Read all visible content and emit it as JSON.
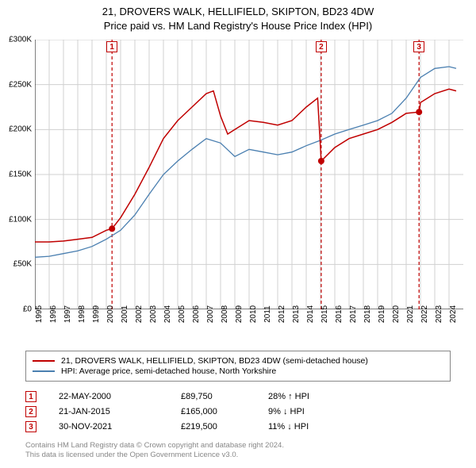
{
  "title": {
    "line1": "21, DROVERS WALK, HELLIFIELD, SKIPTON, BD23 4DW",
    "line2": "Price paid vs. HM Land Registry's House Price Index (HPI)"
  },
  "chart": {
    "type": "line",
    "background_color": "#ffffff",
    "grid_color": "#d0d0d0",
    "axis_color": "#000000",
    "font_size": 10,
    "x_start_year": 1995,
    "x_end_year": 2024,
    "x_ticks": [
      1995,
      1996,
      1997,
      1998,
      1999,
      2000,
      2001,
      2002,
      2003,
      2004,
      2005,
      2006,
      2007,
      2008,
      2009,
      2010,
      2011,
      2012,
      2013,
      2014,
      2015,
      2016,
      2017,
      2018,
      2019,
      2020,
      2021,
      2022,
      2023,
      2024
    ],
    "y_min": 0,
    "y_max": 300000,
    "y_tick_step": 50000,
    "y_ticks": [
      "£0",
      "£50K",
      "£100K",
      "£150K",
      "£200K",
      "£250K",
      "£300K"
    ],
    "series": [
      {
        "id": "property",
        "label": "21, DROVERS WALK, HELLIFIELD, SKIPTON, BD23 4DW (semi-detached house)",
        "color": "#c00000",
        "line_width": 1.5,
        "data": [
          [
            1995,
            75000
          ],
          [
            1996,
            75000
          ],
          [
            1997,
            76000
          ],
          [
            1998,
            78000
          ],
          [
            1999,
            80000
          ],
          [
            2000,
            88000
          ],
          [
            2000.4,
            89750
          ],
          [
            2001,
            102000
          ],
          [
            2002,
            128000
          ],
          [
            2003,
            158000
          ],
          [
            2004,
            190000
          ],
          [
            2005,
            210000
          ],
          [
            2006,
            225000
          ],
          [
            2007,
            240000
          ],
          [
            2007.5,
            243000
          ],
          [
            2008,
            215000
          ],
          [
            2008.5,
            195000
          ],
          [
            2009,
            200000
          ],
          [
            2010,
            210000
          ],
          [
            2011,
            208000
          ],
          [
            2012,
            205000
          ],
          [
            2013,
            210000
          ],
          [
            2014,
            225000
          ],
          [
            2014.8,
            235000
          ],
          [
            2015.05,
            165000
          ],
          [
            2016,
            180000
          ],
          [
            2017,
            190000
          ],
          [
            2018,
            195000
          ],
          [
            2019,
            200000
          ],
          [
            2020,
            208000
          ],
          [
            2021,
            218000
          ],
          [
            2021.9,
            219500
          ],
          [
            2022,
            230000
          ],
          [
            2023,
            240000
          ],
          [
            2024,
            245000
          ],
          [
            2024.5,
            243000
          ]
        ]
      },
      {
        "id": "hpi",
        "label": "HPI: Average price, semi-detached house, North Yorkshire",
        "color": "#4a7fb0",
        "line_width": 1.3,
        "data": [
          [
            1995,
            58000
          ],
          [
            1996,
            59000
          ],
          [
            1997,
            62000
          ],
          [
            1998,
            65000
          ],
          [
            1999,
            70000
          ],
          [
            2000,
            78000
          ],
          [
            2001,
            88000
          ],
          [
            2002,
            105000
          ],
          [
            2003,
            128000
          ],
          [
            2004,
            150000
          ],
          [
            2005,
            165000
          ],
          [
            2006,
            178000
          ],
          [
            2007,
            190000
          ],
          [
            2008,
            185000
          ],
          [
            2009,
            170000
          ],
          [
            2010,
            178000
          ],
          [
            2011,
            175000
          ],
          [
            2012,
            172000
          ],
          [
            2013,
            175000
          ],
          [
            2014,
            182000
          ],
          [
            2015,
            188000
          ],
          [
            2016,
            195000
          ],
          [
            2017,
            200000
          ],
          [
            2018,
            205000
          ],
          [
            2019,
            210000
          ],
          [
            2020,
            218000
          ],
          [
            2021,
            235000
          ],
          [
            2022,
            258000
          ],
          [
            2023,
            268000
          ],
          [
            2024,
            270000
          ],
          [
            2024.5,
            268000
          ]
        ]
      }
    ],
    "dot_markers": [
      {
        "x": 2000.4,
        "y": 89750,
        "color": "#c00000",
        "radius": 4
      },
      {
        "x": 2015.05,
        "y": 165000,
        "color": "#c00000",
        "radius": 4
      },
      {
        "x": 2021.9,
        "y": 219500,
        "color": "#c00000",
        "radius": 4
      }
    ],
    "vertical_markers": [
      {
        "num": "1",
        "x": 2000.4,
        "color": "#c00000",
        "dash": "4,3"
      },
      {
        "num": "2",
        "x": 2015.05,
        "color": "#c00000",
        "dash": "4,3"
      },
      {
        "num": "3",
        "x": 2021.9,
        "color": "#c00000",
        "dash": "4,3"
      }
    ]
  },
  "legend": [
    {
      "color": "#c00000",
      "label": "21, DROVERS WALK, HELLIFIELD, SKIPTON, BD23 4DW (semi-detached house)"
    },
    {
      "color": "#4a7fb0",
      "label": "HPI: Average price, semi-detached house, North Yorkshire"
    }
  ],
  "events": [
    {
      "num": "1",
      "date": "22-MAY-2000",
      "price": "£89,750",
      "diff": "28% ↑ HPI"
    },
    {
      "num": "2",
      "date": "21-JAN-2015",
      "price": "£165,000",
      "diff": "9% ↓ HPI"
    },
    {
      "num": "3",
      "date": "30-NOV-2021",
      "price": "£219,500",
      "diff": "11% ↓ HPI"
    }
  ],
  "footer": {
    "line1": "Contains HM Land Registry data © Crown copyright and database right 2024.",
    "line2": "This data is licensed under the Open Government Licence v3.0."
  }
}
